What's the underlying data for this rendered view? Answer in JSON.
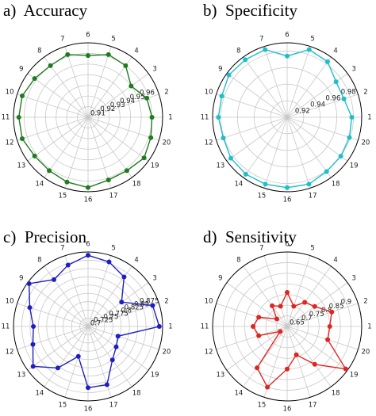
{
  "chart_data": [
    {
      "type": "radar",
      "title": "a)  Accuracy",
      "color": "#1e7b1e",
      "categories": [
        "1",
        "2",
        "3",
        "4",
        "5",
        "6",
        "7",
        "8",
        "9",
        "10",
        "11",
        "12",
        "13",
        "14",
        "15",
        "16",
        "17",
        "18",
        "19",
        "20"
      ],
      "values": [
        0.96,
        0.958,
        0.95,
        0.96,
        0.962,
        0.958,
        0.962,
        0.96,
        0.962,
        0.965,
        0.965,
        0.965,
        0.962,
        0.962,
        0.964,
        0.966,
        0.962,
        0.962,
        0.965,
        0.962
      ],
      "ylim": [
        0.9,
        0.97
      ],
      "yticks": [
        0.91,
        0.92,
        0.93,
        0.94,
        0.95,
        0.96
      ],
      "grid": true
    },
    {
      "type": "radar",
      "title": "b)  Specificity",
      "color": "#1fbfc9",
      "categories": [
        "1",
        "2",
        "3",
        "4",
        "5",
        "6",
        "7",
        "8",
        "9",
        "10",
        "11",
        "12",
        "13",
        "14",
        "15",
        "16",
        "17",
        "18",
        "19",
        "20"
      ],
      "values": [
        0.978,
        0.972,
        0.973,
        0.983,
        0.986,
        0.974,
        0.986,
        0.986,
        0.987,
        0.983,
        0.983,
        0.981,
        0.984,
        0.985,
        0.985,
        0.985,
        0.985,
        0.981,
        0.98,
        0.979
      ],
      "ylim": [
        0.9,
        0.99
      ],
      "yticks": [
        0.92,
        0.94,
        0.96,
        0.98
      ],
      "grid": true
    },
    {
      "type": "radar",
      "title": "c)  Precision",
      "color": "#1f1fbf",
      "categories": [
        "1",
        "2",
        "3",
        "4",
        "5",
        "6",
        "7",
        "8",
        "9",
        "10",
        "11",
        "12",
        "13",
        "14",
        "15",
        "16",
        "17",
        "18",
        "19",
        "20"
      ],
      "values": [
        0.89,
        0.88,
        0.8,
        0.86,
        0.88,
        0.89,
        0.87,
        0.85,
        0.895,
        0.86,
        0.84,
        0.85,
        0.88,
        0.83,
        0.77,
        0.86,
        0.86,
        0.8,
        0.78,
        0.77
      ],
      "ylim": [
        0.675,
        0.9
      ],
      "yticks": [
        0.7,
        0.725,
        0.75,
        0.775,
        0.8,
        0.825,
        0.85,
        0.875
      ],
      "grid": true
    },
    {
      "type": "radar",
      "title": "d)  Sensitivity",
      "color": "#e0241f",
      "categories": [
        "1",
        "2",
        "3",
        "4",
        "5",
        "6",
        "7",
        "8",
        "9",
        "10",
        "11",
        "12",
        "13",
        "14",
        "15",
        "16",
        "17",
        "18",
        "19",
        "20"
      ],
      "values": [
        0.8,
        0.82,
        0.76,
        0.74,
        0.7,
        0.76,
        0.7,
        0.72,
        0.66,
        0.74,
        0.76,
        0.74,
        0.64,
        0.84,
        0.9,
        0.8,
        0.74,
        0.82,
        0.94,
        0.8
      ],
      "ylim": [
        0.6,
        0.95
      ],
      "yticks": [
        0.65,
        0.7,
        0.75,
        0.8,
        0.85,
        0.9
      ],
      "grid": true
    }
  ]
}
